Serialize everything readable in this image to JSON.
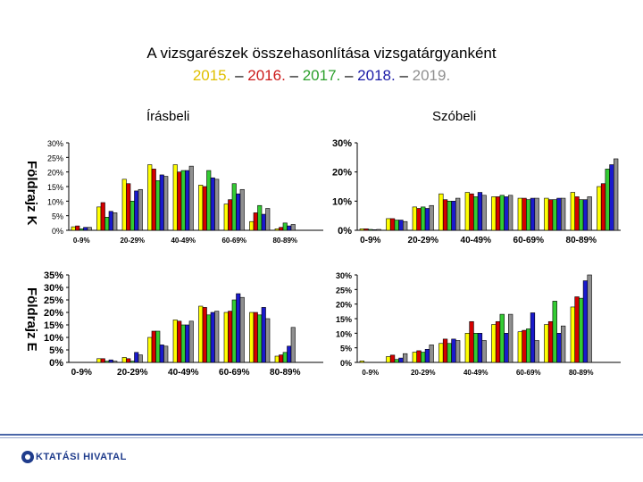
{
  "title": {
    "line1": "A vizsgarészek összehasonlítása vizsgatárgyanként",
    "years": [
      {
        "text": "2015.",
        "color": "#e0c000"
      },
      {
        "text": " – ",
        "color": "#000000"
      },
      {
        "text": "2016.",
        "color": "#cc1a1a"
      },
      {
        "text": " – ",
        "color": "#000000"
      },
      {
        "text": "2017.",
        "color": "#2ca02c"
      },
      {
        "text": " – ",
        "color": "#000000"
      },
      {
        "text": "2018.",
        "color": "#1a1aa6"
      },
      {
        "text": " – ",
        "color": "#000000"
      },
      {
        "text": " 2019.",
        "color": "#909090"
      }
    ]
  },
  "subtitles": {
    "written": "Írásbeli",
    "oral": "Szóbeli"
  },
  "row_labels": {
    "k": "Földrajz K",
    "e": "Földrajz E"
  },
  "footer": {
    "logo_text": "KTATÁSI HIVATAL",
    "logo_icon": "logo-o-icon"
  },
  "series_colors": [
    "#ffff00",
    "#d40000",
    "#33cc33",
    "#1a1acc",
    "#909090"
  ],
  "chart_data": [
    {
      "id": "k-written",
      "type": "bar",
      "title": "Földrajz K – Írásbeli",
      "categories": [
        "0-9%",
        "10-19%",
        "20-29%",
        "30-39%",
        "40-49%",
        "50-59%",
        "60-69%",
        "70-79%",
        "80-89%",
        "90-100%"
      ],
      "category_labels": [
        "0-9%",
        "",
        "20-29%",
        "",
        "40-49%",
        "",
        "60-69%",
        "",
        "80-89%",
        ""
      ],
      "series": [
        {
          "name": "2015.",
          "values": [
            1.2,
            8,
            17.5,
            22.5,
            22.5,
            15.5,
            9,
            3,
            0.5,
            0
          ]
        },
        {
          "name": "2016.",
          "values": [
            1.5,
            9.5,
            16,
            21,
            20,
            15,
            10.5,
            6,
            1,
            0
          ]
        },
        {
          "name": "2017.",
          "values": [
            0.5,
            4.5,
            10,
            17,
            20.5,
            20.5,
            16,
            8.5,
            2.5,
            0
          ]
        },
        {
          "name": "2018.",
          "values": [
            1,
            6.5,
            13.5,
            19,
            20.5,
            18,
            12.5,
            5.5,
            1.5,
            0
          ]
        },
        {
          "name": "2019.",
          "values": [
            1,
            6,
            14,
            18.5,
            22,
            17.5,
            14,
            7.5,
            2,
            0
          ]
        }
      ],
      "ylim": [
        0,
        30
      ],
      "yticks": [
        0,
        5,
        10,
        15,
        20,
        25,
        30
      ],
      "tick_suffix": "%"
    },
    {
      "id": "k-oral",
      "type": "bar",
      "title": "Földrajz K – Szóbeli",
      "categories": [
        "0-9%",
        "10-19%",
        "20-29%",
        "30-39%",
        "40-49%",
        "50-59%",
        "60-69%",
        "70-79%",
        "80-89%",
        "90-100%"
      ],
      "category_labels": [
        "0-9%",
        "",
        "20-29%",
        "",
        "40-49%",
        "",
        "60-69%",
        "",
        "80-89%",
        ""
      ],
      "series": [
        {
          "name": "2015.",
          "values": [
            0.5,
            4,
            8,
            12.5,
            13,
            11.5,
            11,
            11,
            13,
            15
          ]
        },
        {
          "name": "2016.",
          "values": [
            0.5,
            4,
            7.5,
            10.5,
            12.5,
            11.5,
            11,
            10.5,
            11.5,
            16
          ]
        },
        {
          "name": "2017.",
          "values": [
            0.3,
            3.5,
            8,
            10,
            11.5,
            12,
            10.5,
            10.5,
            10.5,
            21
          ]
        },
        {
          "name": "2018.",
          "values": [
            0.2,
            3.5,
            7.5,
            10,
            13,
            11.5,
            11,
            11,
            10.5,
            22.5
          ]
        },
        {
          "name": "2019.",
          "values": [
            0.3,
            3,
            8.5,
            11,
            12,
            12,
            11,
            11,
            11.5,
            24.5
          ]
        }
      ],
      "ylim": [
        0,
        30
      ],
      "yticks": [
        0,
        10,
        20,
        30
      ],
      "tick_suffix": "%"
    },
    {
      "id": "e-written",
      "type": "bar",
      "title": "Földrajz E – Írásbeli",
      "categories": [
        "0-9%",
        "10-19%",
        "20-29%",
        "30-39%",
        "40-49%",
        "50-59%",
        "60-69%",
        "70-79%",
        "80-89%",
        "90-100%"
      ],
      "category_labels": [
        "0-9%",
        "",
        "20-29%",
        "",
        "40-49%",
        "",
        "60-69%",
        "",
        "80-89%",
        ""
      ],
      "series": [
        {
          "name": "2015.",
          "values": [
            0,
            1.5,
            2,
            10,
            17,
            22.5,
            20,
            20,
            2.5,
            0
          ]
        },
        {
          "name": "2016.",
          "values": [
            0,
            1.5,
            1.5,
            12.5,
            16.5,
            22,
            20.5,
            20,
            3,
            0
          ]
        },
        {
          "name": "2017.",
          "values": [
            0,
            0.5,
            0.5,
            12.5,
            15,
            19,
            25,
            19,
            4,
            0
          ]
        },
        {
          "name": "2018.",
          "values": [
            0,
            1,
            4,
            7,
            15,
            20,
            27.5,
            22,
            6.5,
            0
          ]
        },
        {
          "name": "2019.",
          "values": [
            0,
            0.5,
            3,
            6.5,
            16.5,
            20.5,
            26,
            17.5,
            14,
            0
          ]
        }
      ],
      "ylim": [
        0,
        35
      ],
      "yticks": [
        0,
        5,
        10,
        15,
        20,
        25,
        30,
        35
      ],
      "tick_suffix": "%"
    },
    {
      "id": "e-oral",
      "type": "bar",
      "title": "Földrajz E – Szóbeli",
      "categories": [
        "0-9%",
        "10-19%",
        "20-29%",
        "30-39%",
        "40-49%",
        "50-59%",
        "60-69%",
        "70-79%",
        "80-89%",
        "90-100%"
      ],
      "category_labels": [
        "0-9%",
        "",
        "20-29%",
        "",
        "40-49%",
        "",
        "60-69%",
        "",
        "80-89%",
        ""
      ],
      "series": [
        {
          "name": "2015.",
          "values": [
            0.5,
            2,
            3.5,
            6.5,
            10,
            13,
            10.5,
            13,
            19,
            0
          ]
        },
        {
          "name": "2016.",
          "values": [
            0,
            2.5,
            4,
            8,
            14,
            14,
            11,
            14,
            22.5,
            0
          ]
        },
        {
          "name": "2017.",
          "values": [
            0,
            1,
            3.5,
            6.5,
            10,
            16.5,
            11.5,
            21,
            22,
            0
          ]
        },
        {
          "name": "2018.",
          "values": [
            0,
            1.5,
            4.5,
            8,
            10,
            10,
            17,
            10,
            28,
            0
          ]
        },
        {
          "name": "2019.",
          "values": [
            0,
            3,
            6,
            7.5,
            7.5,
            16.5,
            7.5,
            12.5,
            30,
            0
          ]
        }
      ],
      "ylim": [
        0,
        30
      ],
      "yticks": [
        0,
        5,
        10,
        15,
        20,
        25,
        30
      ],
      "tick_suffix": "%"
    }
  ]
}
